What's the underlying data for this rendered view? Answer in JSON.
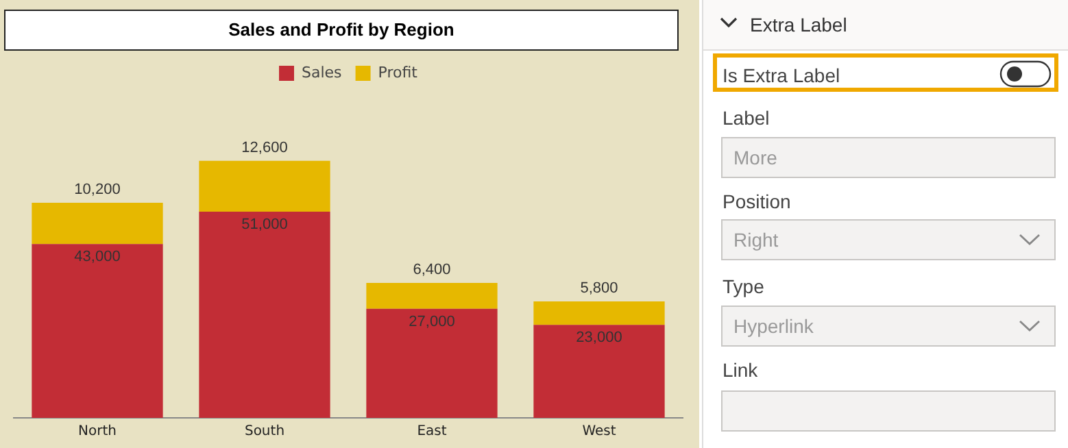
{
  "chart_data": [
    {
      "type": "bar",
      "title": "Sales and Profit by Region",
      "categories": [
        "North",
        "South",
        "East",
        "West"
      ],
      "stacked": true,
      "legend": "top",
      "grid": false,
      "tick_labels": "x",
      "series": [
        {
          "name": "Sales",
          "color": "#c22d36",
          "values": [
            43000,
            51000,
            27000,
            23000
          ],
          "value_labels": [
            "43,000",
            "51,000",
            "27,000",
            "23,000"
          ]
        },
        {
          "name": "Profit",
          "color": "#e6b800",
          "values": [
            10200,
            12600,
            6400,
            5800
          ],
          "value_labels": [
            "10,200",
            "12,600",
            "6,400",
            "5,800"
          ]
        }
      ]
    },
    {
      "type": "other",
      "title": "Extra Label",
      "annotations": [
        "Is Extra Label",
        "Label",
        "More",
        "Position",
        "Right",
        "Type",
        "Hyperlink",
        "Link"
      ]
    }
  ]
}
